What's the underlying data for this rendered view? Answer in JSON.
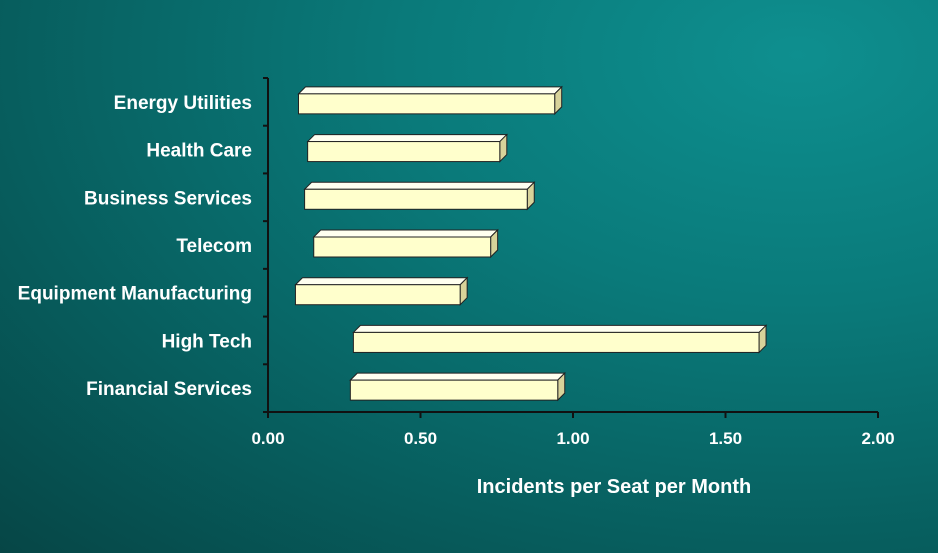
{
  "chart_data": {
    "type": "bar",
    "orientation": "horizontal",
    "subtype": "floating-range",
    "categories": [
      "Energy Utilities",
      "Health Care",
      "Business Services",
      "Telecom",
      "Equipment Manufacturing",
      "High Tech",
      "Financial Services"
    ],
    "ranges": [
      [
        0.1,
        0.94
      ],
      [
        0.13,
        0.76
      ],
      [
        0.12,
        0.85
      ],
      [
        0.15,
        0.73
      ],
      [
        0.09,
        0.63
      ],
      [
        0.28,
        1.61
      ],
      [
        0.27,
        0.95
      ]
    ],
    "xlabel": "Incidents per Seat per Month",
    "ylabel": "",
    "title": "",
    "xlim": [
      0,
      2
    ],
    "xticks": [
      "0.00",
      "0.50",
      "1.00",
      "1.50",
      "2.00"
    ],
    "grid": false,
    "legend": "none",
    "colors": {
      "bar": "#ffffcc",
      "bar_edge": "#222222",
      "background": "#0a7a7a",
      "axis": "#111111",
      "text": "#ffffff"
    }
  }
}
